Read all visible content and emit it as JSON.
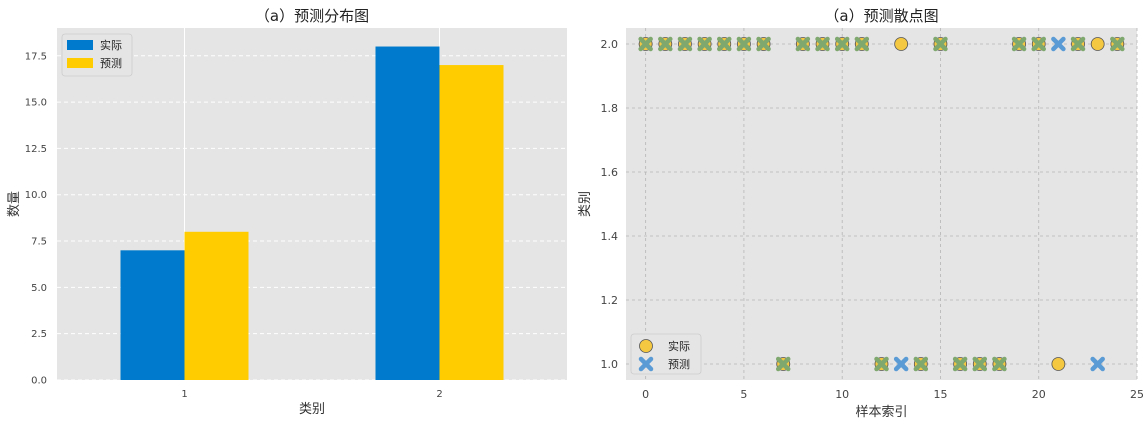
{
  "chart_data": [
    {
      "type": "bar",
      "title": "（a）预测分布图",
      "xlabel": "类别",
      "ylabel": "数量",
      "categories": [
        "1",
        "2"
      ],
      "ylim": [
        0,
        19
      ],
      "yticks": [
        "0.0",
        "2.5",
        "5.0",
        "7.5",
        "10.0",
        "12.5",
        "15.0",
        "17.5"
      ],
      "series": [
        {
          "name": "实际",
          "color": "#007acc",
          "values": [
            7,
            18
          ]
        },
        {
          "name": "预测",
          "color": "#ffcc00",
          "values": [
            8,
            17
          ]
        }
      ],
      "legend": "top-left",
      "grid": true
    },
    {
      "type": "scatter",
      "title": "（a）预测散点图",
      "xlabel": "样本索引",
      "ylabel": "类别",
      "xlim": [
        -1,
        25
      ],
      "ylim": [
        0.95,
        2.05
      ],
      "xticks": [
        "0",
        "5",
        "10",
        "15",
        "20",
        "25"
      ],
      "yticks": [
        "1.0",
        "1.2",
        "1.4",
        "1.6",
        "1.8",
        "2.0"
      ],
      "series": [
        {
          "name": "实际",
          "marker": "circle",
          "color": "#f5c842",
          "x": [
            0,
            1,
            2,
            3,
            4,
            5,
            6,
            7,
            8,
            9,
            10,
            11,
            12,
            13,
            14,
            15,
            16,
            17,
            18,
            19,
            20,
            21,
            22,
            23,
            24
          ],
          "y": [
            2,
            2,
            2,
            2,
            2,
            2,
            2,
            1,
            2,
            2,
            2,
            2,
            1,
            2,
            1,
            2,
            1,
            1,
            1,
            2,
            2,
            1,
            2,
            2,
            2
          ]
        },
        {
          "name": "预测",
          "marker": "x",
          "color": "#5b9bd5",
          "x": [
            0,
            1,
            2,
            3,
            4,
            5,
            6,
            7,
            8,
            9,
            10,
            11,
            12,
            13,
            14,
            15,
            16,
            17,
            18,
            19,
            20,
            21,
            22,
            23,
            24
          ],
          "y": [
            2,
            2,
            2,
            2,
            2,
            2,
            2,
            1,
            2,
            2,
            2,
            2,
            1,
            1,
            1,
            2,
            1,
            1,
            1,
            2,
            2,
            2,
            2,
            1,
            2
          ]
        }
      ],
      "legend": "bottom-left",
      "grid": true
    }
  ]
}
